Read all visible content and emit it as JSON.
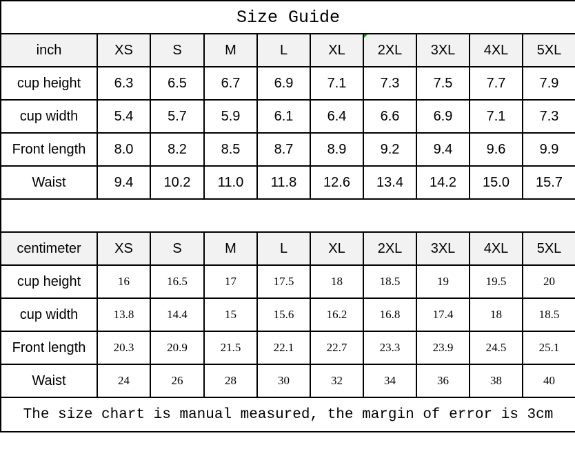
{
  "title": "Size Guide",
  "sizes": [
    "XS",
    "S",
    "M",
    "L",
    "XL",
    "2XL",
    "3XL",
    "4XL",
    "5XL"
  ],
  "inch_table": {
    "unit_label": "inch",
    "rows": [
      {
        "label": "cup height",
        "values": [
          "6.3",
          "6.5",
          "6.7",
          "6.9",
          "7.1",
          "7.3",
          "7.5",
          "7.7",
          "7.9"
        ]
      },
      {
        "label": "cup width",
        "values": [
          "5.4",
          "5.7",
          "5.9",
          "6.1",
          "6.4",
          "6.6",
          "6.9",
          "7.1",
          "7.3"
        ]
      },
      {
        "label": "Front length",
        "values": [
          "8.0",
          "8.2",
          "8.5",
          "8.7",
          "8.9",
          "9.2",
          "9.4",
          "9.6",
          "9.9"
        ]
      },
      {
        "label": "Waist",
        "values": [
          "9.4",
          "10.2",
          "11.0",
          "11.8",
          "12.6",
          "13.4",
          "14.2",
          "15.0",
          "15.7"
        ]
      }
    ]
  },
  "cm_table": {
    "unit_label": "centimeter",
    "rows": [
      {
        "label": "cup height",
        "values": [
          "16",
          "16.5",
          "17",
          "17.5",
          "18",
          "18.5",
          "19",
          "19.5",
          "20"
        ]
      },
      {
        "label": "cup width",
        "values": [
          "13.8",
          "14.4",
          "15",
          "15.6",
          "16.2",
          "16.8",
          "17.4",
          "18",
          "18.5"
        ]
      },
      {
        "label": "Front length",
        "values": [
          "20.3",
          "20.9",
          "21.5",
          "22.1",
          "22.7",
          "23.3",
          "23.9",
          "24.5",
          "25.1"
        ]
      },
      {
        "label": "Waist",
        "values": [
          "24",
          "26",
          "28",
          "30",
          "32",
          "34",
          "36",
          "38",
          "40"
        ]
      }
    ]
  },
  "footer_note": "The size chart is manual measured, the margin of error is 3cm"
}
